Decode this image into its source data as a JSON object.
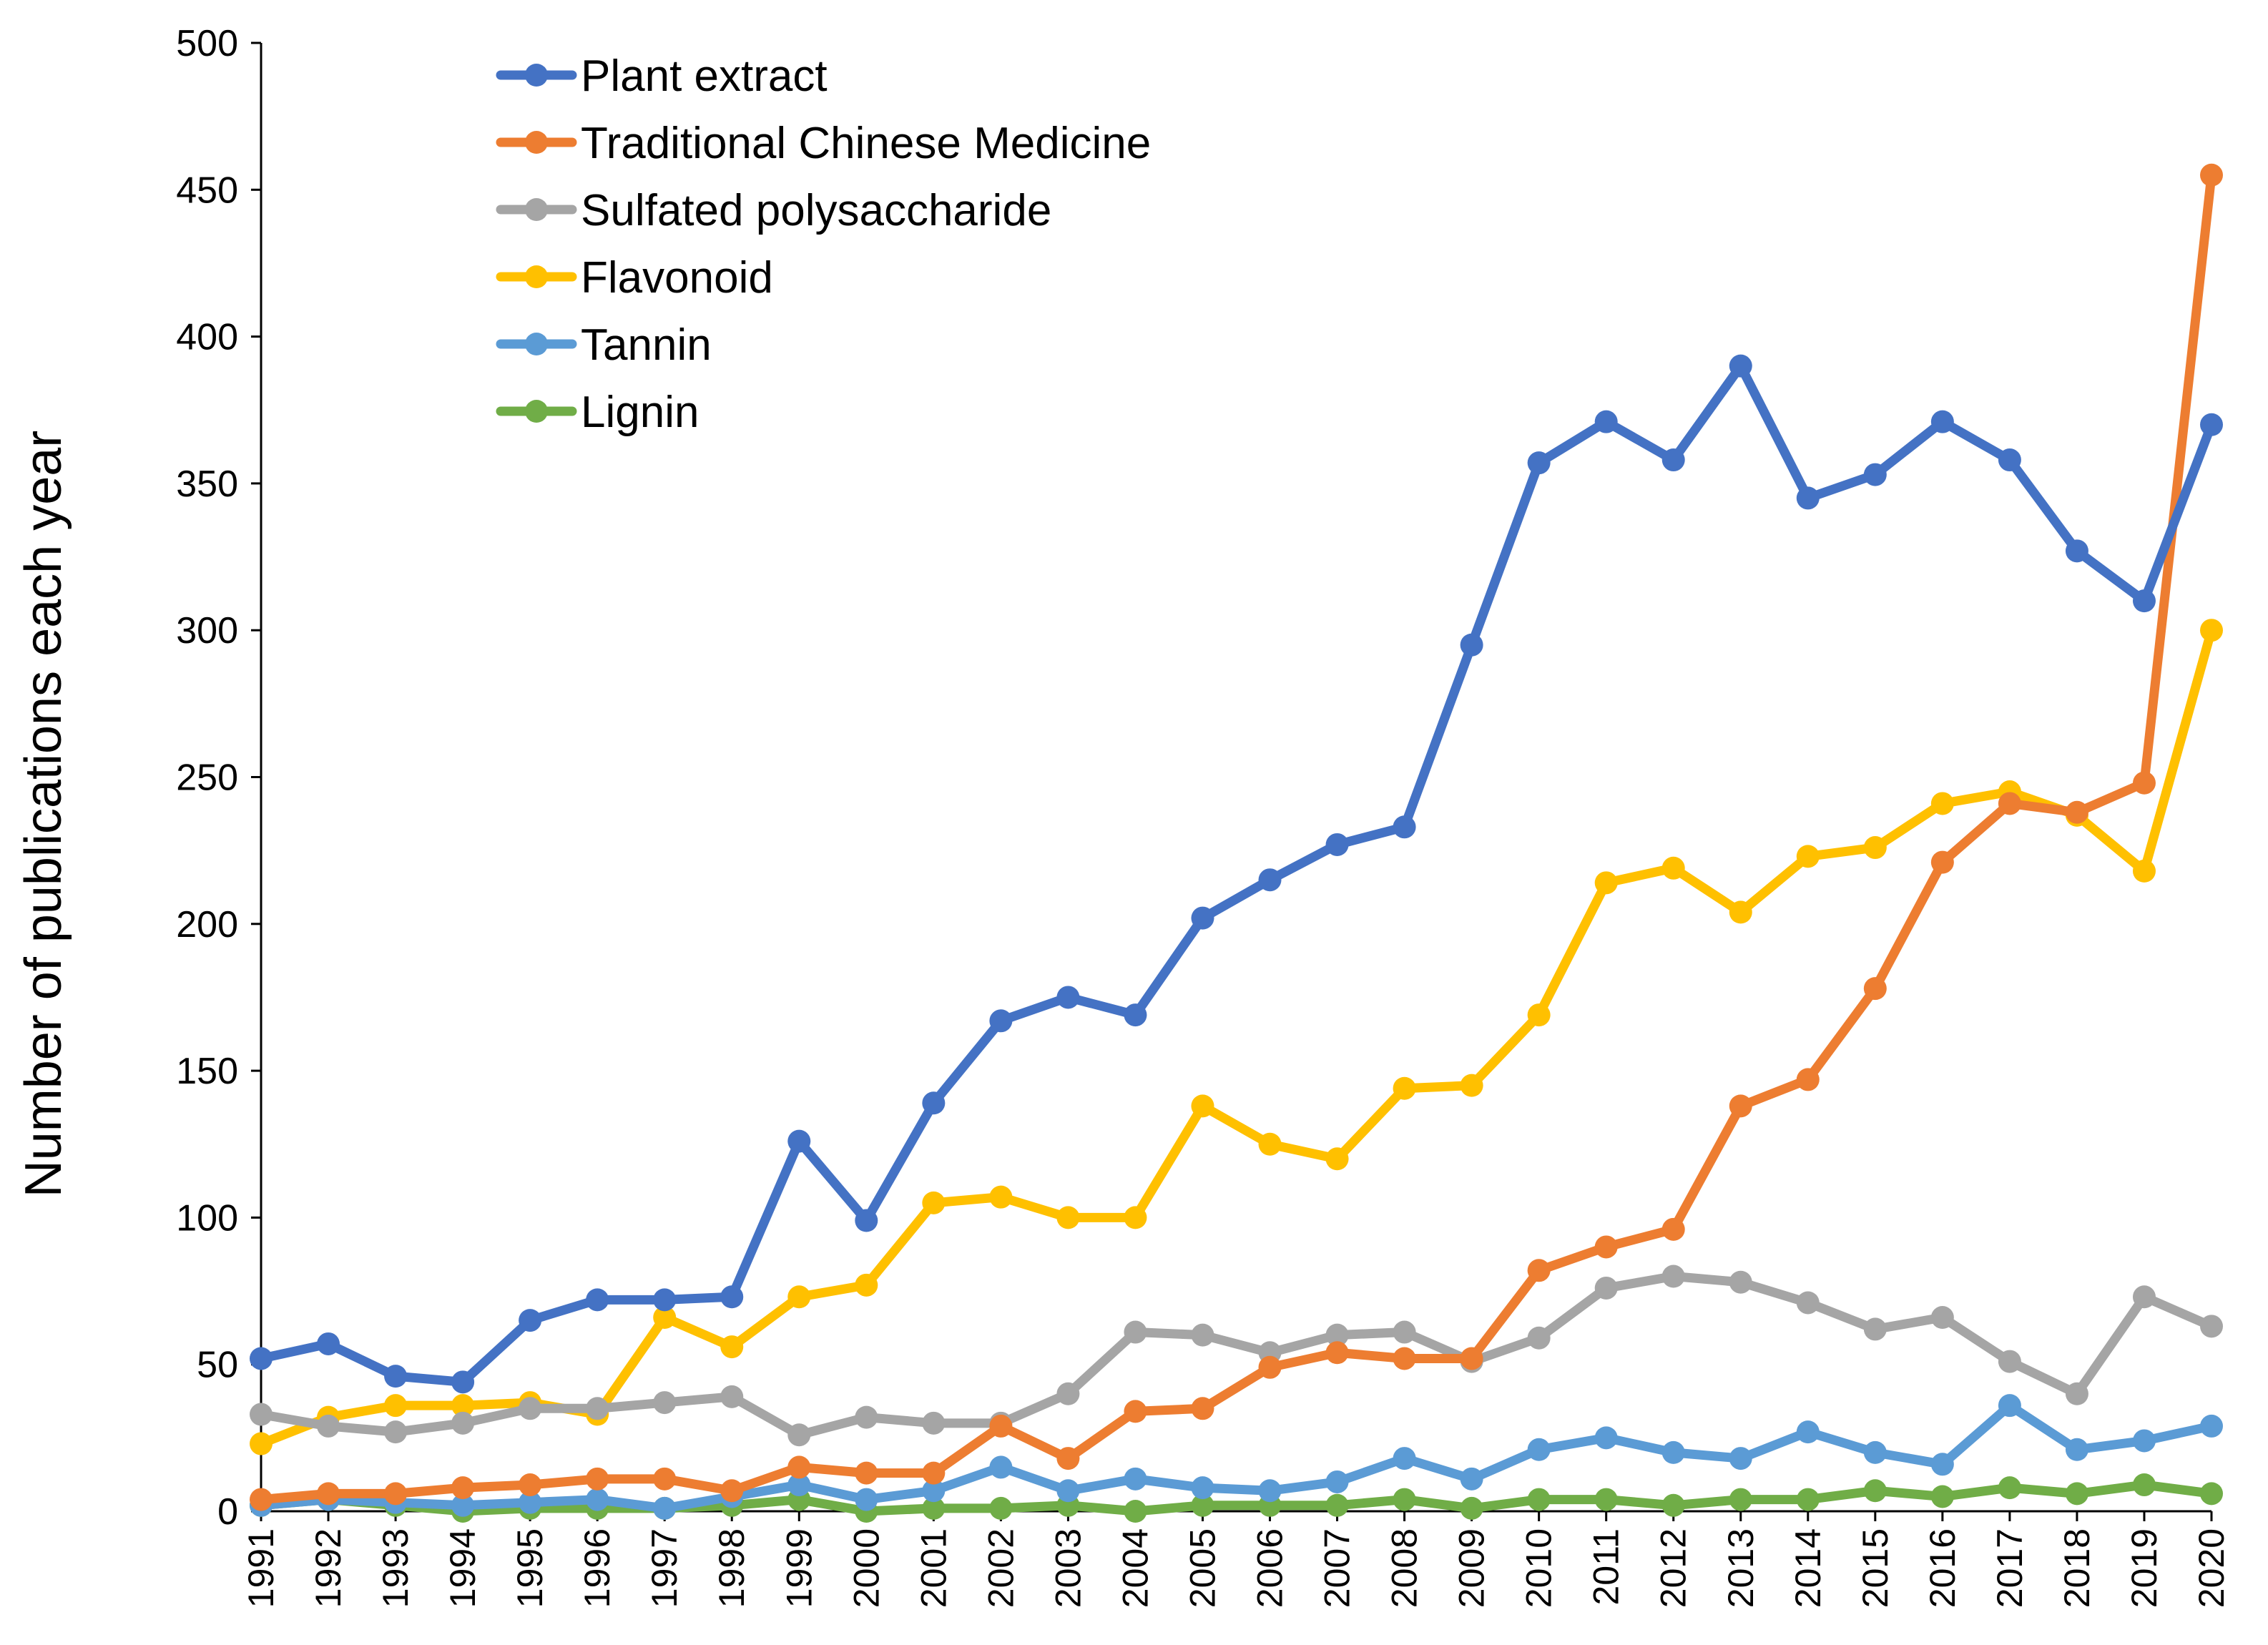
{
  "chart_data": {
    "type": "line",
    "title": "",
    "xlabel": "",
    "ylabel": "Number of publications each year",
    "ylim": [
      0,
      500
    ],
    "yticks": [
      "0",
      "50",
      "100",
      "150",
      "200",
      "250",
      "300",
      "350",
      "400",
      "450",
      "500"
    ],
    "grid": false,
    "legend_position": "top-left",
    "categories": [
      "1991",
      "1992",
      "1993",
      "1994",
      "1995",
      "1996",
      "1997",
      "1998",
      "1999",
      "2000",
      "2001",
      "2002",
      "2003",
      "2004",
      "2005",
      "2006",
      "2007",
      "2008",
      "2009",
      "2010",
      "2011",
      "2012",
      "2013",
      "2014",
      "2015",
      "2016",
      "2017",
      "2018",
      "2019",
      "2020"
    ],
    "series": [
      {
        "name": "Plant extract",
        "color": "#4472C4",
        "values": [
          52,
          57,
          46,
          44,
          65,
          72,
          72,
          73,
          126,
          99,
          139,
          167,
          175,
          169,
          202,
          215,
          227,
          233,
          295,
          357,
          371,
          358,
          390,
          345,
          353,
          371,
          358,
          327,
          310,
          370
        ]
      },
      {
        "name": "Traditional Chinese Medicine",
        "color": "#ED7D31",
        "values": [
          4,
          6,
          6,
          8,
          9,
          11,
          11,
          7,
          15,
          13,
          13,
          29,
          18,
          34,
          35,
          49,
          54,
          52,
          52,
          82,
          90,
          96,
          138,
          147,
          178,
          221,
          241,
          238,
          248,
          455
        ]
      },
      {
        "name": "Sulfated polysaccharide",
        "color": "#A5A5A5",
        "values": [
          33,
          29,
          27,
          30,
          35,
          35,
          37,
          39,
          26,
          32,
          30,
          30,
          40,
          61,
          60,
          54,
          60,
          61,
          51,
          59,
          76,
          80,
          78,
          71,
          62,
          66,
          51,
          40,
          73,
          63
        ]
      },
      {
        "name": "Flavonoid",
        "color": "#FFC000",
        "values": [
          23,
          32,
          36,
          36,
          37,
          33,
          66,
          56,
          73,
          77,
          105,
          107,
          100,
          100,
          138,
          125,
          120,
          144,
          145,
          169,
          214,
          219,
          204,
          223,
          226,
          241,
          245,
          237,
          218,
          300
        ]
      },
      {
        "name": "Tannin",
        "color": "#5B9BD5",
        "values": [
          2,
          4,
          3,
          2,
          3,
          4,
          1,
          5,
          9,
          4,
          7,
          15,
          7,
          11,
          8,
          7,
          10,
          18,
          11,
          21,
          25,
          20,
          18,
          27,
          20,
          16,
          36,
          21,
          24,
          29
        ]
      },
      {
        "name": "Lignin",
        "color": "#70AD47",
        "values": [
          2,
          4,
          2,
          0,
          1,
          1,
          1,
          2,
          4,
          0,
          1,
          1,
          2,
          0,
          2,
          2,
          2,
          4,
          1,
          4,
          4,
          2,
          4,
          4,
          7,
          5,
          8,
          6,
          9,
          6
        ]
      }
    ]
  }
}
